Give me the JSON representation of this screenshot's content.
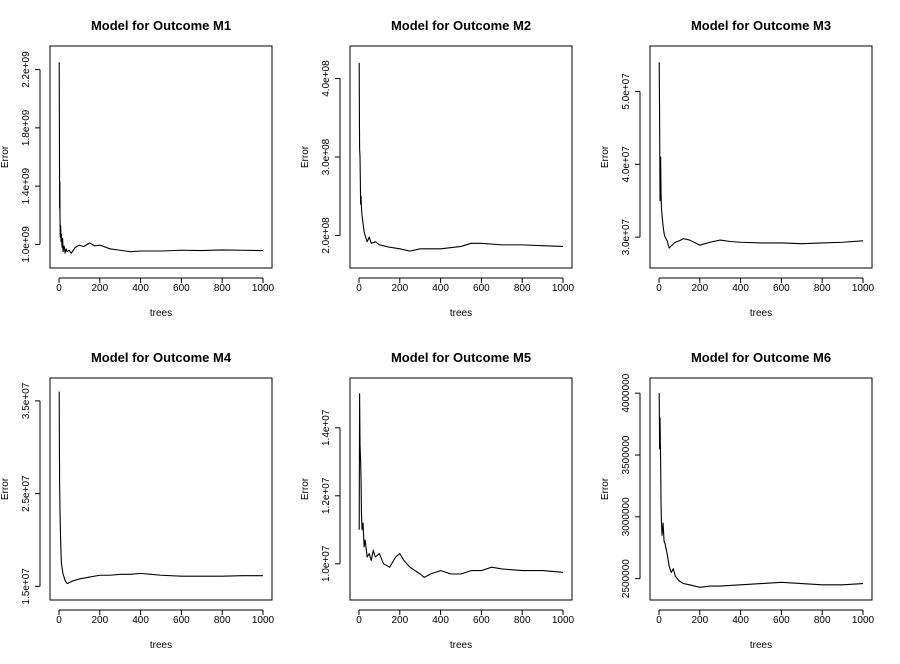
{
  "chart_data": [
    {
      "type": "line",
      "title": "Model for Outcome M1",
      "xlabel": "trees",
      "ylabel": "Error",
      "xlim": [
        0,
        1000
      ],
      "ylim": [
        900000000,
        2300000000
      ],
      "x_ticks": [
        0,
        200,
        400,
        600,
        800,
        1000
      ],
      "x_tick_labels": [
        "0",
        "200",
        "400",
        "600",
        "800",
        "1000"
      ],
      "y_ticks": [
        1000000000,
        1400000000,
        1800000000,
        2200000000
      ],
      "y_tick_labels": [
        "1.0e+09",
        "1.4e+09",
        "1.8e+09",
        "2.2e+09"
      ],
      "series": [
        {
          "x": [
            1,
            2,
            3,
            4,
            5,
            6,
            8,
            10,
            12,
            15,
            18,
            20,
            25,
            30,
            35,
            40,
            50,
            60,
            70,
            80,
            100,
            120,
            150,
            175,
            200,
            250,
            300,
            350,
            400,
            500,
            600,
            700,
            800,
            900,
            1000
          ],
          "y": [
            2250000000,
            1800000000,
            1250000000,
            1430000000,
            1180000000,
            1050000000,
            1130000000,
            1020000000,
            1070000000,
            980000000,
            1040000000,
            950000000,
            990000000,
            940000000,
            970000000,
            950000000,
            960000000,
            940000000,
            960000000,
            980000000,
            995000000,
            985000000,
            1010000000,
            990000000,
            995000000,
            970000000,
            960000000,
            950000000,
            955000000,
            955000000,
            960000000,
            958000000,
            962000000,
            960000000,
            958000000
          ]
        }
      ]
    },
    {
      "type": "line",
      "title": "Model for Outcome M2",
      "xlabel": "trees",
      "ylabel": "Error",
      "xlim": [
        0,
        1000
      ],
      "ylim": [
        170000000,
        430000000
      ],
      "x_ticks": [
        0,
        200,
        400,
        600,
        800,
        1000
      ],
      "x_tick_labels": [
        "0",
        "200",
        "400",
        "600",
        "800",
        "1000"
      ],
      "y_ticks": [
        200000000,
        300000000,
        400000000
      ],
      "y_tick_labels": [
        "2.0e+08",
        "3.0e+08",
        "4.0e+08"
      ],
      "series": [
        {
          "x": [
            1,
            2,
            3,
            5,
            8,
            10,
            12,
            15,
            20,
            25,
            30,
            40,
            50,
            60,
            80,
            100,
            150,
            200,
            250,
            300,
            400,
            500,
            550,
            600,
            700,
            800,
            900,
            1000
          ],
          "y": [
            420000000,
            350000000,
            310000000,
            300000000,
            240000000,
            250000000,
            235000000,
            225000000,
            215000000,
            205000000,
            200000000,
            192000000,
            198000000,
            190000000,
            192000000,
            188000000,
            185000000,
            183000000,
            180000000,
            183000000,
            183000000,
            186000000,
            190000000,
            190000000,
            188000000,
            188000000,
            187000000,
            186000000
          ]
        }
      ]
    },
    {
      "type": "line",
      "title": "Model for Outcome M3",
      "xlabel": "trees",
      "ylabel": "Error",
      "xlim": [
        0,
        1000
      ],
      "ylim": [
        27000000,
        55000000
      ],
      "x_ticks": [
        0,
        200,
        400,
        600,
        800,
        1000
      ],
      "x_tick_labels": [
        "0",
        "200",
        "400",
        "600",
        "800",
        "1000"
      ],
      "y_ticks": [
        30000000,
        40000000,
        50000000
      ],
      "y_tick_labels": [
        "3.0e+07",
        "4.0e+07",
        "5.0e+07"
      ],
      "series": [
        {
          "x": [
            1,
            3,
            5,
            8,
            10,
            12,
            15,
            20,
            25,
            30,
            40,
            50,
            60,
            80,
            100,
            120,
            150,
            200,
            250,
            300,
            350,
            400,
            500,
            600,
            700,
            800,
            900,
            1000
          ],
          "y": [
            54000000,
            46000000,
            35000000,
            41000000,
            36000000,
            34000000,
            33000000,
            31500000,
            30500000,
            30000000,
            29500000,
            28500000,
            28800000,
            29300000,
            29500000,
            29800000,
            29600000,
            28900000,
            29300000,
            29600000,
            29400000,
            29300000,
            29200000,
            29200000,
            29100000,
            29200000,
            29300000,
            29500000
          ]
        }
      ]
    },
    {
      "type": "line",
      "title": "Model for Outcome M4",
      "xlabel": "trees",
      "ylabel": "Error",
      "xlim": [
        0,
        1000
      ],
      "ylim": [
        14500000,
        36500000
      ],
      "x_ticks": [
        0,
        200,
        400,
        600,
        800,
        1000
      ],
      "x_tick_labels": [
        "0",
        "200",
        "400",
        "600",
        "800",
        "1000"
      ],
      "y_ticks": [
        15000000,
        25000000,
        35000000
      ],
      "y_tick_labels": [
        "1.5e+07",
        "2.5e+07",
        "3.5e+07"
      ],
      "series": [
        {
          "x": [
            1,
            2,
            3,
            5,
            8,
            10,
            12,
            15,
            20,
            25,
            30,
            40,
            50,
            70,
            100,
            150,
            200,
            250,
            300,
            350,
            400,
            450,
            500,
            600,
            700,
            800,
            900,
            1000
          ],
          "y": [
            36000000,
            30000000,
            26000000,
            23000000,
            20000000,
            18500000,
            17500000,
            17000000,
            16300000,
            16000000,
            15600000,
            15300000,
            15400000,
            15600000,
            15800000,
            16000000,
            16200000,
            16200000,
            16300000,
            16300000,
            16400000,
            16300000,
            16200000,
            16100000,
            16100000,
            16100000,
            16150000,
            16150000
          ]
        }
      ]
    },
    {
      "type": "line",
      "title": "Model for Outcome M5",
      "xlabel": "trees",
      "ylabel": "Error",
      "xlim": [
        0,
        1000
      ],
      "ylim": [
        9200000,
        15200000
      ],
      "x_ticks": [
        0,
        200,
        400,
        600,
        800,
        1000
      ],
      "x_tick_labels": [
        "0",
        "200",
        "400",
        "600",
        "800",
        "1000"
      ],
      "y_ticks": [
        10000000,
        12000000,
        14000000
      ],
      "y_tick_labels": [
        "1.0e+07",
        "1.2e+07",
        "1.4e+07"
      ],
      "series": [
        {
          "x": [
            1,
            3,
            5,
            8,
            10,
            12,
            15,
            20,
            25,
            30,
            40,
            50,
            60,
            70,
            80,
            100,
            120,
            150,
            180,
            200,
            220,
            250,
            300,
            320,
            350,
            400,
            450,
            500,
            550,
            600,
            650,
            700,
            800,
            900,
            1000
          ],
          "y": [
            11000000,
            15000000,
            13500000,
            13000000,
            12500000,
            11500000,
            11000000,
            11200000,
            10500000,
            10700000,
            10200000,
            10300000,
            10100000,
            10400000,
            10200000,
            10300000,
            10000000,
            9900000,
            10200000,
            10300000,
            10100000,
            9900000,
            9700000,
            9600000,
            9700000,
            9800000,
            9700000,
            9700000,
            9800000,
            9800000,
            9900000,
            9850000,
            9800000,
            9800000,
            9750000
          ]
        }
      ]
    },
    {
      "type": "line",
      "title": "Model for Outcome M6",
      "xlabel": "trees",
      "ylabel": "Error",
      "xlim": [
        0,
        1000
      ],
      "ylim": [
        2400000,
        4050000
      ],
      "x_ticks": [
        0,
        200,
        400,
        600,
        800,
        1000
      ],
      "x_tick_labels": [
        "0",
        "200",
        "400",
        "600",
        "800",
        "1000"
      ],
      "y_ticks": [
        2500000,
        3000000,
        3500000,
        4000000
      ],
      "y_tick_labels": [
        "2500000",
        "3000000",
        "3500000",
        "4000000"
      ],
      "series": [
        {
          "x": [
            1,
            3,
            5,
            8,
            10,
            12,
            15,
            20,
            25,
            30,
            40,
            50,
            60,
            70,
            80,
            100,
            120,
            150,
            200,
            250,
            300,
            400,
            500,
            600,
            700,
            800,
            900,
            1000
          ],
          "y": [
            4000000,
            3550000,
            3800000,
            3450000,
            3100000,
            2950000,
            2850000,
            2950000,
            2800000,
            2780000,
            2700000,
            2600000,
            2550000,
            2580000,
            2520000,
            2480000,
            2460000,
            2450000,
            2430000,
            2440000,
            2440000,
            2450000,
            2460000,
            2470000,
            2460000,
            2450000,
            2450000,
            2460000
          ]
        }
      ]
    }
  ]
}
